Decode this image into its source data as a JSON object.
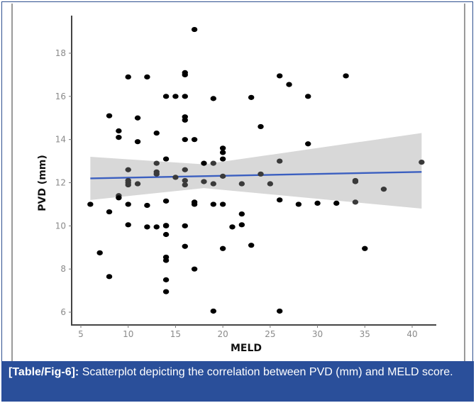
{
  "caption": {
    "label": "[Table/Fig-6]:",
    "text": " Scatterplot depicting the correlation between PVD (mm) and MELD score."
  },
  "colors": {
    "caption_bg": "#2a4f9a",
    "points": "#000000",
    "regression_line": "#3b5fc0",
    "confidence_band": "#d6d6d6"
  },
  "chart_data": {
    "type": "scatter",
    "title": "",
    "xlabel": "MELD",
    "ylabel": "PVD (mm)",
    "xlim": [
      4.2,
      43
    ],
    "ylim": [
      5.4,
      19.5
    ],
    "xticks": [
      5,
      10,
      15,
      20,
      25,
      30,
      35,
      40
    ],
    "yticks": [
      6,
      8,
      10,
      12,
      14,
      16,
      18
    ],
    "grid": false,
    "legend": "none",
    "points": [
      {
        "x": 17,
        "y": 19.1
      },
      {
        "x": 10,
        "y": 16.9
      },
      {
        "x": 12,
        "y": 16.9
      },
      {
        "x": 16,
        "y": 17.1
      },
      {
        "x": 16,
        "y": 17.0
      },
      {
        "x": 14,
        "y": 16.0
      },
      {
        "x": 15,
        "y": 16.0
      },
      {
        "x": 16,
        "y": 16.0
      },
      {
        "x": 19,
        "y": 15.9
      },
      {
        "x": 8,
        "y": 15.1
      },
      {
        "x": 11,
        "y": 15.0
      },
      {
        "x": 16,
        "y": 15.05
      },
      {
        "x": 16,
        "y": 14.9
      },
      {
        "x": 9,
        "y": 14.4
      },
      {
        "x": 9,
        "y": 14.1
      },
      {
        "x": 13,
        "y": 14.3
      },
      {
        "x": 11,
        "y": 13.9
      },
      {
        "x": 16,
        "y": 14.0
      },
      {
        "x": 17,
        "y": 14.0
      },
      {
        "x": 20,
        "y": 13.6
      },
      {
        "x": 20,
        "y": 13.4
      },
      {
        "x": 20,
        "y": 13.1
      },
      {
        "x": 14,
        "y": 13.1
      },
      {
        "x": 13,
        "y": 12.9
      },
      {
        "x": 18,
        "y": 12.9
      },
      {
        "x": 19,
        "y": 12.9
      },
      {
        "x": 10,
        "y": 12.6
      },
      {
        "x": 16,
        "y": 12.6
      },
      {
        "x": 13,
        "y": 12.5
      },
      {
        "x": 13,
        "y": 12.4
      },
      {
        "x": 15,
        "y": 12.25
      },
      {
        "x": 20,
        "y": 12.3
      },
      {
        "x": 10,
        "y": 12.1
      },
      {
        "x": 10,
        "y": 12.0
      },
      {
        "x": 10,
        "y": 11.9
      },
      {
        "x": 11,
        "y": 11.95
      },
      {
        "x": 16,
        "y": 12.1
      },
      {
        "x": 16,
        "y": 11.9
      },
      {
        "x": 18,
        "y": 12.05
      },
      {
        "x": 19,
        "y": 11.95
      },
      {
        "x": 9,
        "y": 11.4
      },
      {
        "x": 9,
        "y": 11.3
      },
      {
        "x": 6,
        "y": 11.0
      },
      {
        "x": 10,
        "y": 11.0
      },
      {
        "x": 8,
        "y": 10.65
      },
      {
        "x": 12,
        "y": 10.95
      },
      {
        "x": 14,
        "y": 11.15
      },
      {
        "x": 17,
        "y": 11.0
      },
      {
        "x": 17,
        "y": 11.1
      },
      {
        "x": 19,
        "y": 11.0
      },
      {
        "x": 20,
        "y": 11.0
      },
      {
        "x": 10,
        "y": 10.05
      },
      {
        "x": 12,
        "y": 9.95
      },
      {
        "x": 13,
        "y": 9.95
      },
      {
        "x": 14,
        "y": 10.0
      },
      {
        "x": 14,
        "y": 10.02
      },
      {
        "x": 14,
        "y": 9.6
      },
      {
        "x": 16,
        "y": 10.0
      },
      {
        "x": 21,
        "y": 9.95
      },
      {
        "x": 22,
        "y": 10.05
      },
      {
        "x": 7,
        "y": 8.75
      },
      {
        "x": 14,
        "y": 8.55
      },
      {
        "x": 14,
        "y": 8.4
      },
      {
        "x": 16,
        "y": 9.05
      },
      {
        "x": 20,
        "y": 8.95
      },
      {
        "x": 17,
        "y": 8.0
      },
      {
        "x": 8,
        "y": 7.65
      },
      {
        "x": 14,
        "y": 7.5
      },
      {
        "x": 14,
        "y": 6.95
      },
      {
        "x": 19,
        "y": 6.05
      },
      {
        "x": 26,
        "y": 6.05
      },
      {
        "x": 26,
        "y": 16.95
      },
      {
        "x": 27,
        "y": 16.55
      },
      {
        "x": 23,
        "y": 15.95
      },
      {
        "x": 29,
        "y": 16.0
      },
      {
        "x": 33,
        "y": 16.95
      },
      {
        "x": 24,
        "y": 14.6
      },
      {
        "x": 29,
        "y": 13.8
      },
      {
        "x": 26,
        "y": 13.0
      },
      {
        "x": 41,
        "y": 12.95
      },
      {
        "x": 24,
        "y": 12.4
      },
      {
        "x": 22,
        "y": 11.95
      },
      {
        "x": 25,
        "y": 11.95
      },
      {
        "x": 34,
        "y": 12.1
      },
      {
        "x": 34,
        "y": 12.05
      },
      {
        "x": 37,
        "y": 11.7
      },
      {
        "x": 26,
        "y": 11.2
      },
      {
        "x": 28,
        "y": 11.0
      },
      {
        "x": 30,
        "y": 11.05
      },
      {
        "x": 32,
        "y": 11.05
      },
      {
        "x": 34,
        "y": 11.1
      },
      {
        "x": 22,
        "y": 10.55
      },
      {
        "x": 23,
        "y": 9.1
      },
      {
        "x": 35,
        "y": 8.95
      }
    ],
    "regression": {
      "x_range": [
        6,
        41
      ],
      "y_at_start": 12.2,
      "y_at_end": 12.5,
      "ci_lower_at_start": 11.2,
      "ci_upper_at_start": 13.2,
      "ci_lower_at_end": 10.8,
      "ci_upper_at_end": 14.3,
      "ci_mid_x": 18,
      "ci_lower_at_mid": 11.75,
      "ci_upper_at_mid": 12.85
    }
  }
}
